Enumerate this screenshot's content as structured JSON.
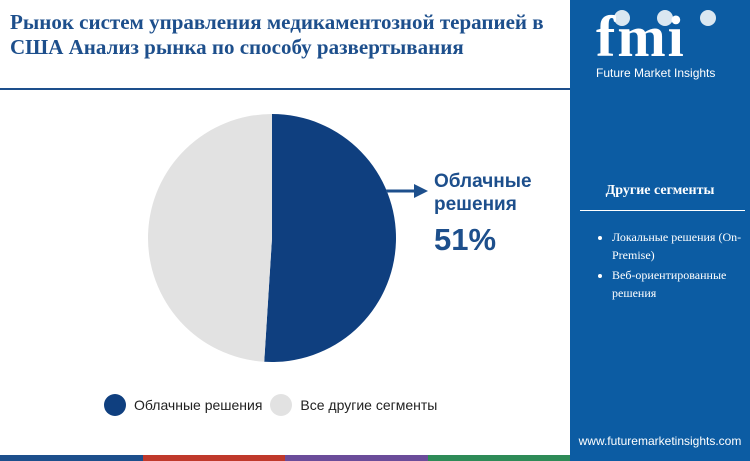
{
  "title": "Рынок систем управления медикаментозной терапией в США Анализ рынка по способу развертывания",
  "brand": {
    "logo_text": "fmi",
    "tagline": "Future Market Insights",
    "website": "www.futuremarketinsights.com"
  },
  "sidebar": {
    "heading": "Другие сегменты",
    "items": [
      "Локальные решения (On-Premise)",
      "Веб-ориентированные решения"
    ]
  },
  "callout": {
    "label": "Облачные решения",
    "value": "51%"
  },
  "colors": {
    "accent": "#0c5ca3",
    "primary": "#0f3f7f",
    "other": "#e2e2e2",
    "bottom_bar": [
      "#1d4f8c",
      "#c0392b",
      "#6b4c9a",
      "#2e8b57"
    ]
  },
  "chart_data": {
    "type": "pie",
    "title": "Рынок систем управления медикаментозной терапией в США Анализ рынка по способу развертывания",
    "slices": [
      {
        "label": "Облачные решения",
        "value": 51,
        "color": "#0f3f7f"
      },
      {
        "label": "Все другие сегменты",
        "value": 49,
        "color": "#e2e2e2"
      }
    ],
    "start": "12 o'clock, clockwise",
    "legend_position": "bottom"
  }
}
